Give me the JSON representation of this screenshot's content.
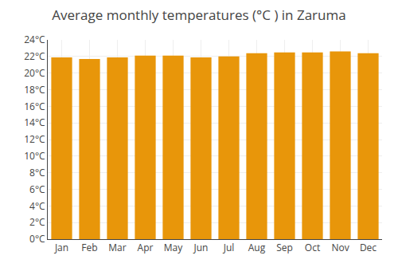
{
  "chart_data": {
    "type": "bar",
    "title": "Average monthly temperatures (°C ) in Zaruma",
    "categories": [
      "Jan",
      "Feb",
      "Mar",
      "Apr",
      "May",
      "Jun",
      "Jul",
      "Aug",
      "Sep",
      "Oct",
      "Nov",
      "Dec"
    ],
    "values": [
      21.9,
      21.7,
      21.9,
      22.1,
      22.1,
      21.9,
      22.0,
      22.4,
      22.5,
      22.5,
      22.6,
      22.4
    ],
    "color": "#E8960A",
    "ylim": [
      0,
      24
    ],
    "yticks": [
      {
        "value": 0,
        "label": "0°C"
      },
      {
        "value": 2,
        "label": "2°C"
      },
      {
        "value": 4,
        "label": "4°C"
      },
      {
        "value": 6,
        "label": "6°C"
      },
      {
        "value": 8,
        "label": "8°C"
      },
      {
        "value": 10,
        "label": "10°C"
      },
      {
        "value": 12,
        "label": "12°C"
      },
      {
        "value": 14,
        "label": "14°C"
      },
      {
        "value": 16,
        "label": "16°C"
      },
      {
        "value": 18,
        "label": "18°C"
      },
      {
        "value": 20,
        "label": "20°C"
      },
      {
        "value": 22,
        "label": "22°C"
      },
      {
        "value": 24,
        "label": "24°C"
      }
    ],
    "grid": true
  }
}
